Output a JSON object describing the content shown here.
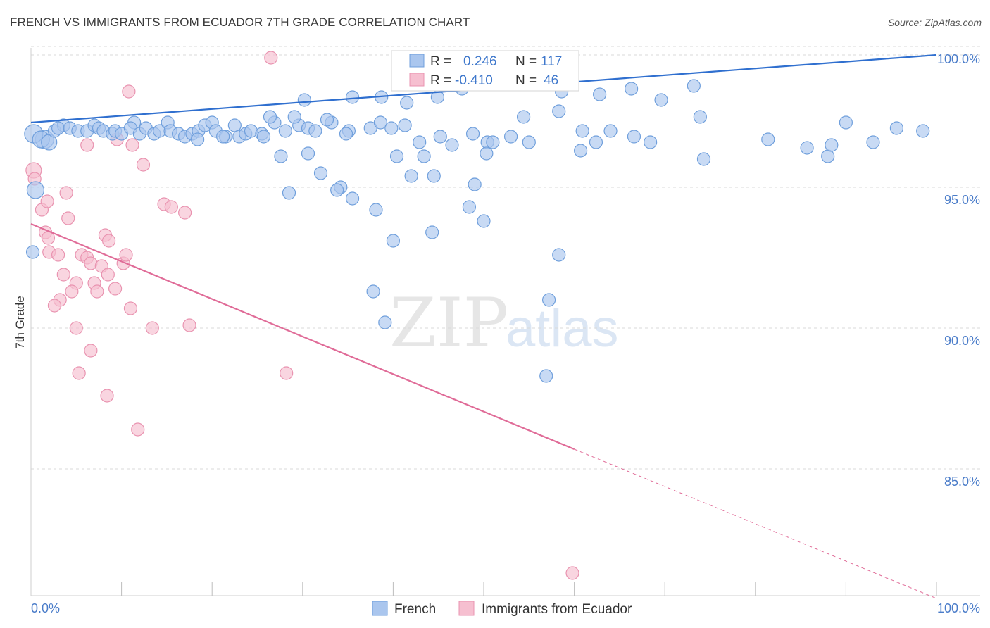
{
  "title": "FRENCH VS IMMIGRANTS FROM ECUADOR 7TH GRADE CORRELATION CHART",
  "source": "Source: ZipAtlas.com",
  "watermark": {
    "zip": "ZIP",
    "atlas": "atlas"
  },
  "colors": {
    "blue_fill": "#aac6ee",
    "blue_stroke": "#6f9fdc",
    "blue_line": "#2f6fcf",
    "pink_fill": "#f6bfd0",
    "pink_stroke": "#e993b0",
    "pink_line": "#e06c98",
    "tick_label": "#4a7cc9",
    "grid": "#d9d9d9"
  },
  "legend": {
    "rows": [
      {
        "r_label": "R =",
        "r_value": "0.246",
        "n_label": "N =",
        "n_value": "117"
      },
      {
        "r_label": "R =",
        "r_value": "-0.410",
        "n_label": "N =",
        "n_value": "46"
      }
    ]
  },
  "bottom_legend": [
    "French",
    "Immigrants from Ecuador"
  ],
  "chart_data": {
    "type": "scatter",
    "title": "FRENCH VS IMMIGRANTS FROM ECUADOR 7TH GRADE CORRELATION CHART",
    "xlabel": "",
    "ylabel": "7th Grade",
    "xlim": [
      0,
      100
    ],
    "ylim": [
      80.5,
      100.5
    ],
    "x_tick_labels": [
      "0.0%",
      "100.0%"
    ],
    "y_ticks": [
      85,
      90,
      95,
      100
    ],
    "y_tick_labels": [
      "85.0%",
      "90.0%",
      "95.0%",
      "100.0%"
    ],
    "grid": "horizontal dashed",
    "series": [
      {
        "name": "French",
        "color": "#aac6ee",
        "trend": {
          "x": [
            0,
            100
          ],
          "y": [
            97.3,
            99.7
          ]
        },
        "points": [
          [
            1.5,
            96.7
          ],
          [
            0.3,
            96.9
          ],
          [
            1.1,
            96.7
          ],
          [
            0.5,
            94.9
          ],
          [
            0.2,
            92.7
          ],
          [
            2.0,
            96.6
          ],
          [
            2.6,
            97.0
          ],
          [
            3.6,
            97.2
          ],
          [
            3.0,
            97.1
          ],
          [
            4.3,
            97.1
          ],
          [
            5.2,
            97.0
          ],
          [
            6.2,
            97.0
          ],
          [
            7.0,
            97.2
          ],
          [
            7.5,
            97.1
          ],
          [
            8.0,
            97.0
          ],
          [
            9.0,
            96.9
          ],
          [
            9.3,
            97.0
          ],
          [
            10.0,
            96.9
          ],
          [
            11.4,
            97.3
          ],
          [
            11.0,
            97.1
          ],
          [
            12.0,
            96.9
          ],
          [
            12.7,
            97.1
          ],
          [
            13.6,
            96.9
          ],
          [
            14.2,
            97.0
          ],
          [
            15.1,
            97.3
          ],
          [
            15.4,
            97.0
          ],
          [
            16.3,
            96.9
          ],
          [
            17.0,
            96.8
          ],
          [
            17.8,
            96.9
          ],
          [
            18.5,
            97.0
          ],
          [
            19.2,
            97.2
          ],
          [
            18.4,
            96.7
          ],
          [
            20.0,
            97.3
          ],
          [
            20.4,
            97.0
          ],
          [
            21.5,
            96.8
          ],
          [
            22.5,
            97.2
          ],
          [
            23.0,
            96.8
          ],
          [
            23.7,
            96.9
          ],
          [
            21.2,
            96.8
          ],
          [
            24.3,
            97.0
          ],
          [
            25.5,
            96.9
          ],
          [
            26.9,
            97.3
          ],
          [
            28.1,
            97.0
          ],
          [
            29.6,
            97.2
          ],
          [
            30.6,
            97.1
          ],
          [
            31.4,
            97.0
          ],
          [
            33.2,
            97.3
          ],
          [
            35.1,
            97.0
          ],
          [
            34.8,
            96.9
          ],
          [
            37.5,
            97.1
          ],
          [
            38.6,
            97.3
          ],
          [
            39.8,
            97.1
          ],
          [
            41.3,
            97.2
          ],
          [
            42.9,
            96.6
          ],
          [
            46.5,
            96.5
          ],
          [
            48.8,
            96.9
          ],
          [
            50.4,
            96.6
          ],
          [
            53.0,
            96.8
          ],
          [
            55.0,
            96.6
          ],
          [
            58.3,
            97.7
          ],
          [
            60.9,
            97.0
          ],
          [
            62.4,
            96.6
          ],
          [
            64.0,
            97.0
          ],
          [
            66.6,
            96.8
          ],
          [
            27.6,
            96.1
          ],
          [
            25.7,
            96.8
          ],
          [
            32.0,
            95.5
          ],
          [
            34.2,
            95.0
          ],
          [
            28.5,
            94.8
          ],
          [
            30.6,
            96.2
          ],
          [
            33.8,
            94.9
          ],
          [
            35.5,
            94.6
          ],
          [
            38.1,
            94.2
          ],
          [
            42.0,
            95.4
          ],
          [
            44.5,
            95.4
          ],
          [
            49.0,
            95.1
          ],
          [
            50.3,
            96.2
          ],
          [
            43.4,
            96.1
          ],
          [
            29.1,
            97.5
          ],
          [
            32.7,
            97.4
          ],
          [
            30.2,
            98.1
          ],
          [
            26.4,
            97.5
          ],
          [
            35.5,
            98.2
          ],
          [
            38.7,
            98.2
          ],
          [
            41.5,
            98.0
          ],
          [
            44.9,
            98.2
          ],
          [
            47.6,
            98.5
          ],
          [
            58.6,
            98.4
          ],
          [
            62.8,
            98.3
          ],
          [
            69.6,
            98.1
          ],
          [
            66.3,
            98.5
          ],
          [
            73.9,
            97.5
          ],
          [
            73.2,
            98.6
          ],
          [
            48.4,
            94.3
          ],
          [
            37.8,
            91.3
          ],
          [
            39.1,
            90.2
          ],
          [
            50.0,
            93.8
          ],
          [
            57.2,
            91.0
          ],
          [
            58.3,
            92.6
          ],
          [
            56.9,
            88.3
          ],
          [
            54.4,
            97.5
          ],
          [
            60.7,
            96.3
          ],
          [
            81.4,
            96.7
          ],
          [
            68.4,
            96.6
          ],
          [
            85.7,
            96.4
          ],
          [
            90.0,
            97.3
          ],
          [
            93.0,
            96.6
          ],
          [
            98.5,
            97.0
          ],
          [
            95.6,
            97.1
          ],
          [
            88.0,
            96.1
          ],
          [
            88.4,
            96.5
          ],
          [
            74.3,
            96.0
          ],
          [
            40.0,
            93.1
          ],
          [
            44.3,
            93.4
          ],
          [
            51.0,
            96.6
          ],
          [
            45.2,
            96.8
          ],
          [
            40.4,
            96.1
          ]
        ]
      },
      {
        "name": "Immigrants from Ecuador",
        "color": "#f6bfd0",
        "trend": {
          "x": [
            0,
            60
          ],
          "y": [
            93.7,
            85.7
          ]
        },
        "trend_extension": {
          "x": [
            60,
            100
          ],
          "y": [
            85.7,
            80.4
          ]
        },
        "points": [
          [
            0.3,
            95.6
          ],
          [
            0.4,
            95.3
          ],
          [
            1.2,
            94.2
          ],
          [
            1.8,
            94.5
          ],
          [
            3.9,
            94.8
          ],
          [
            4.1,
            93.9
          ],
          [
            1.6,
            93.4
          ],
          [
            1.9,
            93.2
          ],
          [
            2.0,
            92.7
          ],
          [
            3.0,
            92.6
          ],
          [
            3.6,
            91.9
          ],
          [
            5.0,
            91.6
          ],
          [
            4.5,
            91.3
          ],
          [
            3.2,
            91.0
          ],
          [
            2.6,
            90.8
          ],
          [
            5.6,
            92.6
          ],
          [
            6.2,
            92.5
          ],
          [
            6.6,
            92.3
          ],
          [
            7.0,
            91.6
          ],
          [
            7.3,
            91.3
          ],
          [
            7.8,
            92.2
          ],
          [
            8.5,
            91.9
          ],
          [
            9.3,
            91.4
          ],
          [
            10.2,
            92.3
          ],
          [
            10.5,
            92.6
          ],
          [
            11.0,
            90.7
          ],
          [
            8.2,
            93.3
          ],
          [
            8.6,
            93.1
          ],
          [
            13.4,
            90.0
          ],
          [
            5.0,
            90.0
          ],
          [
            6.6,
            89.2
          ],
          [
            5.3,
            88.4
          ],
          [
            8.4,
            87.6
          ],
          [
            11.8,
            86.4
          ],
          [
            17.5,
            90.1
          ],
          [
            28.2,
            88.4
          ],
          [
            14.7,
            94.4
          ],
          [
            15.5,
            94.3
          ],
          [
            17.0,
            94.1
          ],
          [
            12.4,
            95.8
          ],
          [
            9.5,
            96.7
          ],
          [
            11.2,
            96.5
          ],
          [
            6.2,
            96.5
          ],
          [
            10.8,
            98.4
          ],
          [
            26.5,
            99.6
          ],
          [
            59.8,
            81.3
          ]
        ]
      }
    ]
  }
}
